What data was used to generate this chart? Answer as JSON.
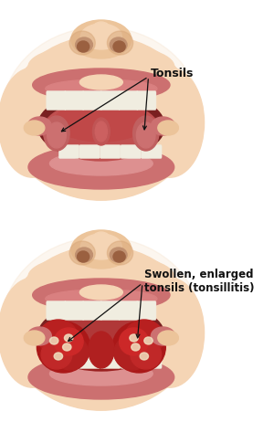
{
  "bg_color": "#ffffff",
  "skin_light": "#f5d5b5",
  "skin_mid": "#ecc49a",
  "skin_dark": "#d9a87a",
  "lip_color": "#cc7070",
  "lip_dark": "#b85858",
  "mouth_dark": "#7a2020",
  "throat_normal": "#c05050",
  "throat_inflamed": "#9a2020",
  "tonsil_normal_outer": "#c86868",
  "tonsil_normal_inner": "#d88080",
  "tonsil_inflamed": "#b82020",
  "tonsil_inflamed2": "#cc2828",
  "uvula_color": "#b05050",
  "teeth_color": "#f0ede0",
  "nose_shadow": "#d4a080",
  "annotation_color": "#111111",
  "label1": "Tonsils",
  "label2": "Swollen, enlarged\ntonsils (tonsillitis)"
}
